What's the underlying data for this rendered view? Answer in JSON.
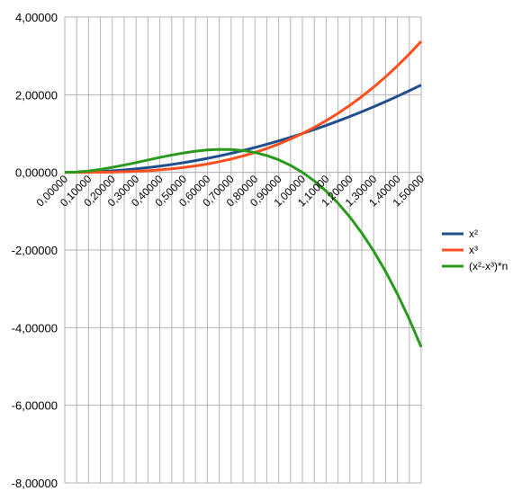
{
  "chart_data": {
    "type": "line",
    "x_tick_labels": [
      "0,00000",
      "0,10000",
      "0,20000",
      "0,30000",
      "0,40000",
      "0,50000",
      "0,60000",
      "0,70000",
      "0,80000",
      "0,90000",
      "1,00000",
      "1,10000",
      "1,20000",
      "1,30000",
      "1,40000",
      "1,50000"
    ],
    "y_tick_labels": [
      "4,00000",
      "2,00000",
      "0,00000",
      "-2,00000",
      "-4,00000",
      "-6,00000",
      "-8,00000"
    ],
    "xlim": [
      0,
      1.5
    ],
    "ylim": [
      -8,
      4
    ],
    "grid": true,
    "legend_position": "right",
    "series": [
      {
        "name": "x²",
        "color": "#1f4e8c",
        "x": [
          0,
          0.05,
          0.1,
          0.15,
          0.2,
          0.25,
          0.3,
          0.35,
          0.4,
          0.45,
          0.5,
          0.55,
          0.6,
          0.65,
          0.7,
          0.75,
          0.8,
          0.85,
          0.9,
          0.95,
          1,
          1.05,
          1.1,
          1.15,
          1.2,
          1.25,
          1.3,
          1.35,
          1.4,
          1.45,
          1.5
        ],
        "y": [
          0,
          0.0025,
          0.01,
          0.0225,
          0.04,
          0.0625,
          0.09,
          0.1225,
          0.16,
          0.2025,
          0.25,
          0.3025,
          0.36,
          0.4225,
          0.49,
          0.5625,
          0.64,
          0.7225,
          0.81,
          0.9025,
          1,
          1.1025,
          1.21,
          1.3225,
          1.44,
          1.5625,
          1.69,
          1.8225,
          1.96,
          2.1025,
          2.25
        ]
      },
      {
        "name": "x³",
        "color": "#ff4f1f",
        "x": [
          0,
          0.05,
          0.1,
          0.15,
          0.2,
          0.25,
          0.3,
          0.35,
          0.4,
          0.45,
          0.5,
          0.55,
          0.6,
          0.65,
          0.7,
          0.75,
          0.8,
          0.85,
          0.9,
          0.95,
          1,
          1.05,
          1.1,
          1.15,
          1.2,
          1.25,
          1.3,
          1.35,
          1.4,
          1.45,
          1.5
        ],
        "y": [
          0,
          0.000125,
          0.001,
          0.003375,
          0.008,
          0.015625,
          0.027,
          0.042875,
          0.064,
          0.091125,
          0.125,
          0.166375,
          0.216,
          0.274625,
          0.343,
          0.421875,
          0.512,
          0.614125,
          0.729,
          0.857375,
          1,
          1.157625,
          1.331,
          1.520875,
          1.728,
          1.953125,
          2.197,
          2.460375,
          2.744,
          3.048625,
          3.375
        ]
      },
      {
        "name": "(x²-x³)*n",
        "color": "#2a9a1d",
        "x": [
          0,
          0.05,
          0.1,
          0.15,
          0.2,
          0.25,
          0.3,
          0.35,
          0.4,
          0.45,
          0.5,
          0.55,
          0.6,
          0.65,
          0.7,
          0.75,
          0.8,
          0.85,
          0.9,
          0.95,
          1,
          1.05,
          1.1,
          1.15,
          1.2,
          1.25,
          1.3,
          1.35,
          1.4,
          1.45,
          1.5
        ],
        "y": [
          0,
          0.0095,
          0.036,
          0.0765,
          0.128,
          0.1875,
          0.252,
          0.3185,
          0.384,
          0.4455,
          0.5,
          0.5445,
          0.576,
          0.5915,
          0.588,
          0.5625,
          0.512,
          0.4335,
          0.324,
          0.1805,
          0,
          -0.2205,
          -0.484,
          -0.7935,
          -1.152,
          -1.5625,
          -2.028,
          -2.5515,
          -3.136,
          -3.7845,
          -4.5
        ]
      }
    ]
  }
}
